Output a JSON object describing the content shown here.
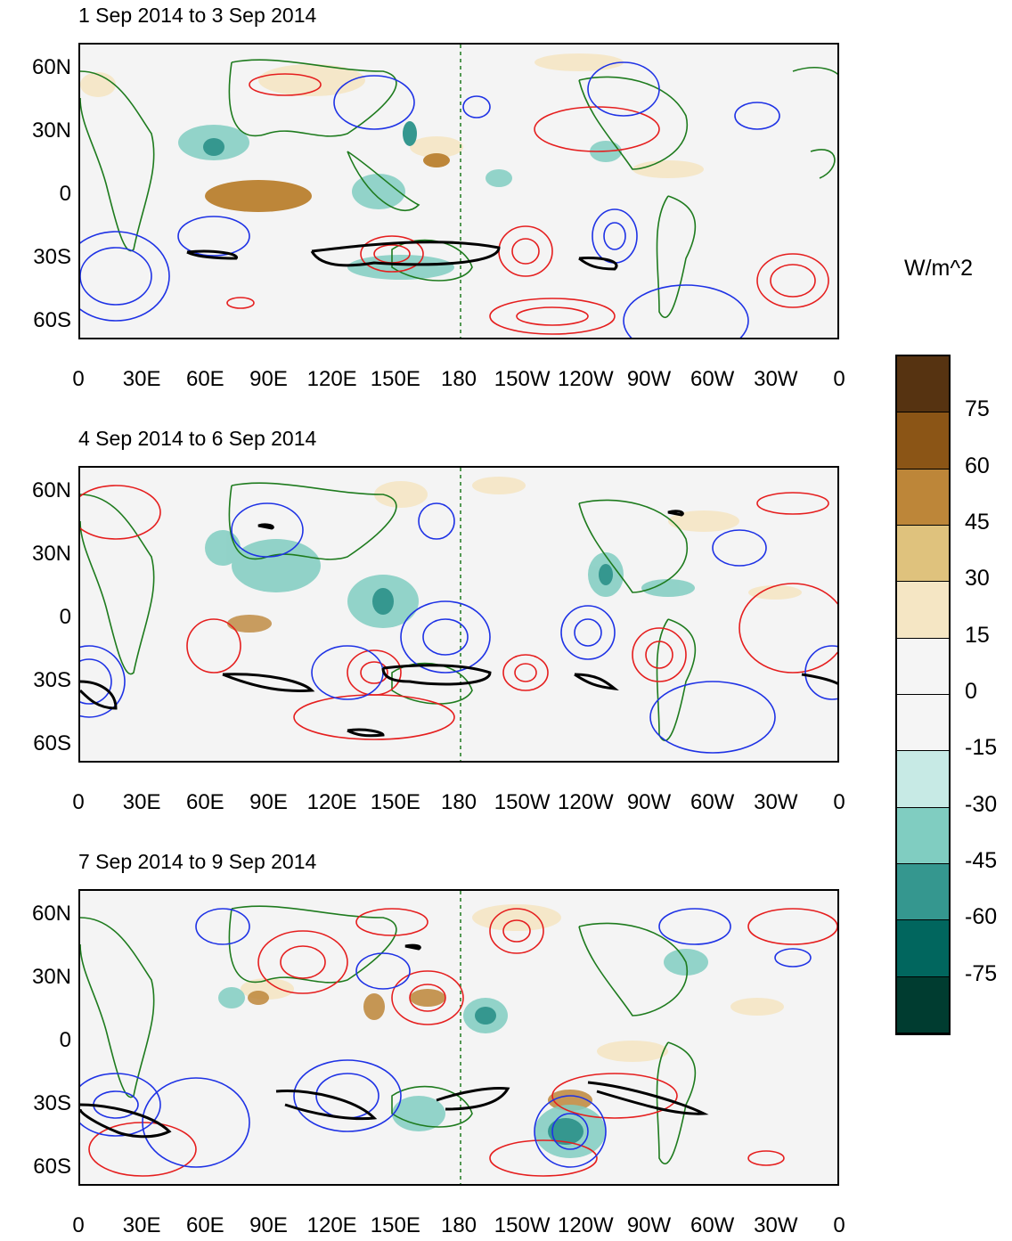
{
  "units": "W/m^2",
  "panels": [
    {
      "title": "1 Sep 2014 to 3 Sep 2014"
    },
    {
      "title": "4 Sep 2014 to 6 Sep 2014"
    },
    {
      "title": "7 Sep 2014 to 9 Sep 2014"
    }
  ],
  "y_ticks": [
    "60N",
    "30N",
    "0",
    "30S",
    "60S"
  ],
  "x_ticks": [
    "0",
    "30E",
    "60E",
    "90E",
    "120E",
    "150E",
    "180",
    "150W",
    "120W",
    "90W",
    "60W",
    "30W",
    "0"
  ],
  "colorbar": {
    "labels": [
      "75",
      "60",
      "45",
      "30",
      "15",
      "0",
      "-15",
      "-30",
      "-45",
      "-60",
      "-75"
    ],
    "colors": [
      "#563311",
      "#8b5516",
      "#bd8639",
      "#dfc27d",
      "#f5e6c4",
      "#f5f5f5",
      "#f5f5f5",
      "#c7eae5",
      "#80cdc1",
      "#35978f",
      "#01665e",
      "#003c30"
    ]
  },
  "colors": {
    "coast": "#1e7b1e",
    "positive_contour": "#e51e1e",
    "negative_contour": "#1e32e5",
    "black_contour": "#000000"
  }
}
